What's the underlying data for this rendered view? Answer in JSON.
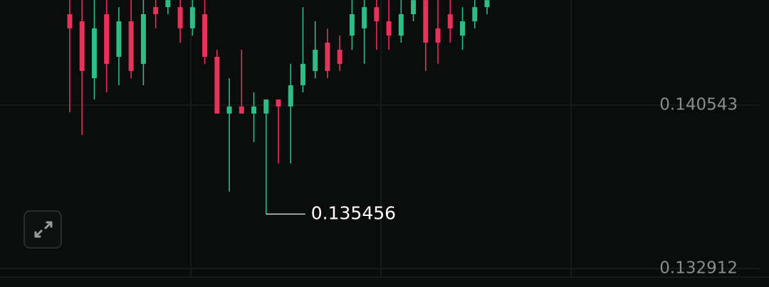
{
  "chart_data": {
    "type": "candlestick",
    "ylim": [
      0.132514,
      0.145454
    ],
    "yticks": [
      0.140543,
      0.132912
    ],
    "up_color": "#2ebd85",
    "down_color": "#e8325a",
    "low_marker": 0.135456,
    "ohlc": [
      [
        0.14479,
        0.14545,
        0.14021,
        0.14413
      ],
      [
        0.14446,
        0.14545,
        0.13915,
        0.14214
      ],
      [
        0.1418,
        0.14545,
        0.14081,
        0.14413
      ],
      [
        0.14479,
        0.14545,
        0.14114,
        0.14247
      ],
      [
        0.1428,
        0.14512,
        0.14147,
        0.14446
      ],
      [
        0.14446,
        0.14545,
        0.1418,
        0.14214
      ],
      [
        0.14247,
        0.14545,
        0.14147,
        0.14479
      ],
      [
        0.14512,
        0.14545,
        0.14413,
        0.14479
      ],
      [
        0.14512,
        0.14545,
        0.14479,
        0.14545
      ],
      [
        0.14512,
        0.14545,
        0.14346,
        0.14413
      ],
      [
        0.14413,
        0.14545,
        0.14379,
        0.14512
      ],
      [
        0.14479,
        0.14545,
        0.14247,
        0.1428
      ],
      [
        0.1428,
        0.14313,
        0.14015,
        0.14015
      ],
      [
        0.14015,
        0.1418,
        0.1365,
        0.14048
      ],
      [
        0.14048,
        0.14313,
        0.14015,
        0.14015
      ],
      [
        0.14015,
        0.14114,
        0.13882,
        0.14048
      ],
      [
        0.14015,
        0.14081,
        0.135456,
        0.14081
      ],
      [
        0.14081,
        0.14081,
        0.13782,
        0.14048
      ],
      [
        0.14048,
        0.14247,
        0.13782,
        0.14147
      ],
      [
        0.14147,
        0.14512,
        0.14114,
        0.14247
      ],
      [
        0.14214,
        0.14446,
        0.1418,
        0.14313
      ],
      [
        0.14346,
        0.14412,
        0.1418,
        0.14214
      ],
      [
        0.14313,
        0.14379,
        0.14214,
        0.14247
      ],
      [
        0.14379,
        0.14545,
        0.14313,
        0.14479
      ],
      [
        0.14413,
        0.14545,
        0.14247,
        0.14512
      ],
      [
        0.14512,
        0.14545,
        0.14313,
        0.14446
      ],
      [
        0.14446,
        0.14545,
        0.14313,
        0.14379
      ],
      [
        0.14379,
        0.14545,
        0.14346,
        0.14479
      ],
      [
        0.14479,
        0.14545,
        0.14446,
        0.14545
      ],
      [
        0.14545,
        0.14545,
        0.14214,
        0.14346
      ],
      [
        0.14413,
        0.14545,
        0.14247,
        0.14346
      ],
      [
        0.14479,
        0.14545,
        0.14346,
        0.14413
      ],
      [
        0.14379,
        0.14512,
        0.14313,
        0.14446
      ],
      [
        0.14446,
        0.14545,
        0.14413,
        0.14512
      ],
      [
        0.14512,
        0.14545,
        0.14479,
        0.14545
      ]
    ]
  }
}
